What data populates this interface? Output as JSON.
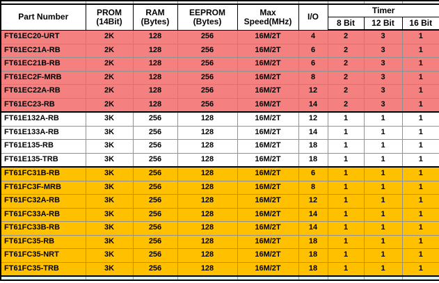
{
  "table": {
    "headers": {
      "part_number": "Part Number",
      "prom_line1": "PROM",
      "prom_line2": "(14Bit)",
      "ram_line1": "RAM",
      "ram_line2": "(Bytes)",
      "eeprom_line1": "EEPROM",
      "eeprom_line2": "(Bytes)",
      "speed_line1": "Max",
      "speed_line2": "Speed(MHz)",
      "io": "I/O",
      "timer": "Timer",
      "timer_8bit": "8 Bit",
      "timer_12bit": "12 Bit",
      "timer_16bit": "16 Bit"
    },
    "rows": [
      {
        "part": "FT61EC20-URT",
        "prom": "2K",
        "ram": "128",
        "eeprom": "256",
        "max_speed": "16M/2T",
        "io": "4",
        "timer_8bit": "2",
        "timer_12bit": "3",
        "timer_16bit": "1",
        "group": "pink"
      },
      {
        "part": "FT61EC21A-RB",
        "prom": "2K",
        "ram": "128",
        "eeprom": "256",
        "max_speed": "16M/2T",
        "io": "6",
        "timer_8bit": "2",
        "timer_12bit": "3",
        "timer_16bit": "1",
        "group": "pink"
      },
      {
        "part": "FT61EC21B-RB",
        "prom": "2K",
        "ram": "128",
        "eeprom": "256",
        "max_speed": "16M/2T",
        "io": "6",
        "timer_8bit": "2",
        "timer_12bit": "3",
        "timer_16bit": "1",
        "group": "pink"
      },
      {
        "part": "FT61EC2F-MRB",
        "prom": "2K",
        "ram": "128",
        "eeprom": "256",
        "max_speed": "16M/2T",
        "io": "8",
        "timer_8bit": "2",
        "timer_12bit": "3",
        "timer_16bit": "1",
        "group": "pink"
      },
      {
        "part": "FT61EC22A-RB",
        "prom": "2K",
        "ram": "128",
        "eeprom": "256",
        "max_speed": "16M/2T",
        "io": "12",
        "timer_8bit": "2",
        "timer_12bit": "3",
        "timer_16bit": "1",
        "group": "pink"
      },
      {
        "part": "FT61EC23-RB",
        "prom": "2K",
        "ram": "128",
        "eeprom": "256",
        "max_speed": "16M/2T",
        "io": "14",
        "timer_8bit": "2",
        "timer_12bit": "3",
        "timer_16bit": "1",
        "group": "pink"
      },
      {
        "part": "FT61E132A-RB",
        "prom": "3K",
        "ram": "256",
        "eeprom": "128",
        "max_speed": "16M/2T",
        "io": "12",
        "timer_8bit": "1",
        "timer_12bit": "1",
        "timer_16bit": "1",
        "group": "white"
      },
      {
        "part": "FT61E133A-RB",
        "prom": "3K",
        "ram": "256",
        "eeprom": "128",
        "max_speed": "16M/2T",
        "io": "14",
        "timer_8bit": "1",
        "timer_12bit": "1",
        "timer_16bit": "1",
        "group": "white"
      },
      {
        "part": "FT61E135-RB",
        "prom": "3K",
        "ram": "256",
        "eeprom": "128",
        "max_speed": "16M/2T",
        "io": "18",
        "timer_8bit": "1",
        "timer_12bit": "1",
        "timer_16bit": "1",
        "group": "white"
      },
      {
        "part": "FT61E135-TRB",
        "prom": "3K",
        "ram": "256",
        "eeprom": "128",
        "max_speed": "16M/2T",
        "io": "18",
        "timer_8bit": "1",
        "timer_12bit": "1",
        "timer_16bit": "1",
        "group": "white"
      },
      {
        "part": "FT61FC31B-RB",
        "prom": "3K",
        "ram": "256",
        "eeprom": "128",
        "max_speed": "16M/2T",
        "io": "6",
        "timer_8bit": "1",
        "timer_12bit": "1",
        "timer_16bit": "1",
        "group": "yellow"
      },
      {
        "part": "FT61FC3F-MRB",
        "prom": "3K",
        "ram": "256",
        "eeprom": "128",
        "max_speed": "16M/2T",
        "io": "8",
        "timer_8bit": "1",
        "timer_12bit": "1",
        "timer_16bit": "1",
        "group": "yellow"
      },
      {
        "part": "FT61FC32A-RB",
        "prom": "3K",
        "ram": "256",
        "eeprom": "128",
        "max_speed": "16M/2T",
        "io": "12",
        "timer_8bit": "1",
        "timer_12bit": "1",
        "timer_16bit": "1",
        "group": "yellow"
      },
      {
        "part": "FT61FC33A-RB",
        "prom": "3K",
        "ram": "256",
        "eeprom": "128",
        "max_speed": "16M/2T",
        "io": "14",
        "timer_8bit": "1",
        "timer_12bit": "1",
        "timer_16bit": "1",
        "group": "yellow"
      },
      {
        "part": "FT61FC33B-RB",
        "prom": "3K",
        "ram": "256",
        "eeprom": "128",
        "max_speed": "16M/2T",
        "io": "14",
        "timer_8bit": "1",
        "timer_12bit": "1",
        "timer_16bit": "1",
        "group": "yellow"
      },
      {
        "part": "FT61FC35-RB",
        "prom": "3K",
        "ram": "256",
        "eeprom": "128",
        "max_speed": "16M/2T",
        "io": "18",
        "timer_8bit": "1",
        "timer_12bit": "1",
        "timer_16bit": "1",
        "group": "yellow"
      },
      {
        "part": "FT61FC35-NRT",
        "prom": "3K",
        "ram": "256",
        "eeprom": "128",
        "max_speed": "16M/2T",
        "io": "18",
        "timer_8bit": "1",
        "timer_12bit": "1",
        "timer_16bit": "1",
        "group": "yellow"
      },
      {
        "part": "FT61FC35-TRB",
        "prom": "3K",
        "ram": "256",
        "eeprom": "128",
        "max_speed": "16M/2T",
        "io": "18",
        "timer_8bit": "1",
        "timer_12bit": "1",
        "timer_16bit": "1",
        "group": "yellow"
      }
    ],
    "colors": {
      "group_pink": "#F48080",
      "group_yellow": "#FFC000",
      "group_white": "#FFFFFF",
      "partial_row_bottom": "#D9F1F1",
      "grid_line": "#919191",
      "heavy_line": "#000000"
    }
  }
}
